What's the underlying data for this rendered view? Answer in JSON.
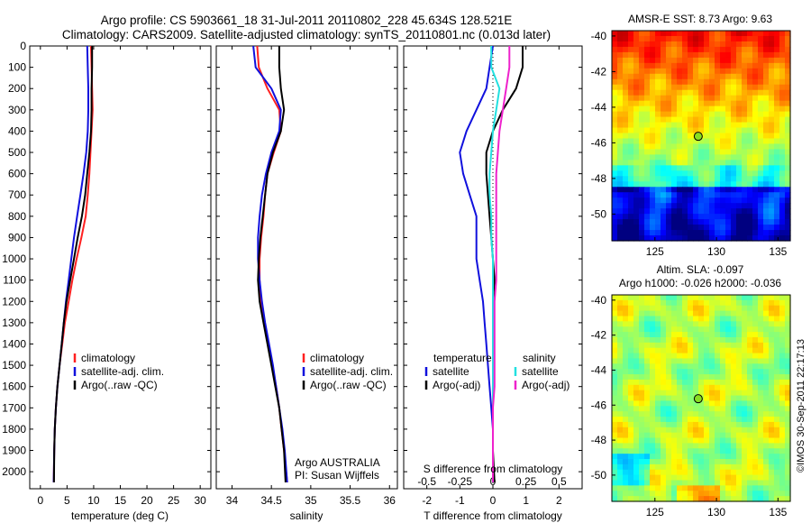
{
  "title": {
    "line1": "Argo profile: CS 5903661_18 31-Jul-2011 20110802_228 45.634S 128.521E",
    "line2": "Climatology: CARS2009. Satellite-adjusted climatology: synTS_20110801.nc (0.013d later)"
  },
  "colors": {
    "clim": "#ff2020",
    "sat": "#1010dd",
    "argo": "#000000",
    "sat_s": "#22e0e0",
    "argo_s": "#ee22cc"
  },
  "chart_data": [
    {
      "type": "line",
      "xlabel": "temperature (deg C)",
      "xlim": [
        -2,
        32
      ],
      "ylim": [
        2080,
        0
      ],
      "xticks": [
        0,
        5,
        10,
        15,
        20,
        25,
        30
      ],
      "yticks": [
        0,
        100,
        200,
        300,
        400,
        500,
        600,
        700,
        800,
        900,
        1000,
        1100,
        1200,
        1300,
        1400,
        1500,
        1600,
        1700,
        1800,
        1900,
        2000
      ],
      "legend": [
        "climatology",
        "satellite-adj. clim.",
        "Argo(..raw -QC)"
      ],
      "legend_position": "lower-center",
      "series": [
        {
          "name": "climatology",
          "x": [
            9.5,
            9.6,
            9.7,
            9.8,
            9.6,
            9.4,
            9.2,
            8.9,
            8.5,
            7.7,
            6.8,
            6.0,
            5.3,
            4.6,
            4.1,
            3.6,
            3.2,
            2.9,
            2.7,
            2.6,
            2.5
          ],
          "y": [
            0,
            100,
            200,
            300,
            400,
            500,
            600,
            700,
            800,
            900,
            1000,
            1100,
            1200,
            1300,
            1400,
            1500,
            1600,
            1700,
            1800,
            1900,
            2050
          ]
        },
        {
          "name": "satellite-adj. clim.",
          "x": [
            8.8,
            8.9,
            9.0,
            9.0,
            8.9,
            8.6,
            8.1,
            7.5,
            6.9,
            6.3,
            5.8,
            5.3,
            4.8,
            4.4,
            4.0,
            3.6,
            3.2,
            2.9,
            2.7,
            2.6,
            2.5
          ],
          "y": [
            0,
            100,
            200,
            300,
            400,
            500,
            600,
            700,
            800,
            900,
            1000,
            1100,
            1200,
            1300,
            1400,
            1500,
            1600,
            1700,
            1800,
            1900,
            2050
          ]
        },
        {
          "name": "Argo(..raw -QC)",
          "x": [
            9.7,
            9.7,
            9.6,
            9.6,
            9.5,
            9.2,
            8.8,
            8.4,
            7.8,
            7.0,
            6.3,
            5.6,
            4.9,
            4.4,
            4.0,
            3.6,
            3.2,
            2.9,
            2.7,
            2.6,
            2.55
          ],
          "y": [
            0,
            100,
            200,
            300,
            400,
            500,
            600,
            700,
            800,
            900,
            1000,
            1100,
            1200,
            1300,
            1400,
            1500,
            1600,
            1700,
            1800,
            1900,
            2050
          ]
        }
      ],
      "annotations": []
    },
    {
      "type": "line",
      "xlabel": "salinity",
      "xlim": [
        33.8,
        36.1
      ],
      "ylim": [
        2080,
        0
      ],
      "xticks": [
        34,
        34.5,
        35,
        35.5,
        36
      ],
      "legend": [
        "climatology",
        "satellite-adj. clim.",
        "Argo(..raw -QC)"
      ],
      "legend_position": "lower-right",
      "series": [
        {
          "name": "climatology",
          "x": [
            34.32,
            34.34,
            34.45,
            34.6,
            34.62,
            34.53,
            34.45,
            34.42,
            34.4,
            34.37,
            34.35,
            34.35,
            34.37,
            34.41,
            34.46,
            34.51,
            34.56,
            34.6,
            34.63,
            34.66,
            34.7
          ],
          "y": [
            0,
            100,
            200,
            300,
            400,
            500,
            600,
            700,
            800,
            900,
            1000,
            1100,
            1200,
            1300,
            1400,
            1500,
            1600,
            1700,
            1800,
            1900,
            2050
          ]
        },
        {
          "name": "satellite-adj. clim.",
          "x": [
            34.27,
            34.3,
            34.5,
            34.62,
            34.6,
            34.5,
            34.43,
            34.38,
            34.35,
            34.33,
            34.33,
            34.35,
            34.38,
            34.42,
            34.47,
            34.52,
            34.56,
            34.6,
            34.64,
            34.67,
            34.7
          ],
          "y": [
            0,
            100,
            200,
            300,
            400,
            500,
            600,
            700,
            800,
            900,
            1000,
            1100,
            1200,
            1300,
            1400,
            1500,
            1600,
            1700,
            1800,
            1900,
            2050
          ]
        },
        {
          "name": "Argo(..raw -QC)",
          "x": [
            34.6,
            34.6,
            34.62,
            34.66,
            34.62,
            34.52,
            34.45,
            34.42,
            34.39,
            34.36,
            34.34,
            34.33,
            34.35,
            34.4,
            34.45,
            34.5,
            34.55,
            34.6,
            34.63,
            34.66,
            34.68
          ],
          "y": [
            0,
            100,
            200,
            300,
            400,
            500,
            600,
            700,
            800,
            900,
            1000,
            1100,
            1200,
            1300,
            1400,
            1500,
            1600,
            1700,
            1800,
            1900,
            2050
          ]
        }
      ],
      "annotations": [
        "Argo AUSTRALIA",
        "PI: Susan Wijffels"
      ]
    },
    {
      "type": "line",
      "xlabel": "T difference from climatology",
      "top_axis_label": "S difference from climatology",
      "xlim": [
        -2.7,
        2.7
      ],
      "ylim": [
        2080,
        0
      ],
      "xticks": [
        -2,
        -1,
        0,
        1,
        2
      ],
      "top_xticks": [
        "-0.5",
        "-0.25",
        "0",
        "0.25",
        "0.5"
      ],
      "legend_groups": [
        {
          "title": "temperature",
          "items": [
            "satellite",
            "Argo(-adj)"
          ]
        },
        {
          "title": "salinity",
          "items": [
            "satellite",
            "Argo(-adj)"
          ]
        }
      ],
      "series": [
        {
          "name": "satellite",
          "group": "temperature",
          "x": [
            0.0,
            -0.1,
            -0.2,
            -0.5,
            -0.8,
            -1.0,
            -0.9,
            -0.7,
            -0.5,
            -0.5,
            -0.5,
            -0.4,
            -0.3,
            -0.25,
            -0.2,
            -0.15,
            -0.1,
            -0.05,
            0.0,
            0.0,
            0.0
          ],
          "y": [
            0,
            100,
            200,
            300,
            400,
            500,
            600,
            700,
            800,
            900,
            1000,
            1100,
            1200,
            1300,
            1400,
            1500,
            1600,
            1700,
            1800,
            1900,
            2050
          ]
        },
        {
          "name": "Argo(-adj)",
          "group": "temperature",
          "x": [
            0.9,
            0.9,
            0.7,
            0.3,
            0.0,
            -0.2,
            -0.2,
            -0.15,
            -0.1,
            -0.05,
            0.0,
            0.05,
            0.0,
            0.0,
            0.0,
            0.0,
            0.0,
            0.0,
            0.0,
            0.0,
            0.05
          ],
          "y": [
            0,
            100,
            200,
            300,
            400,
            500,
            600,
            700,
            800,
            900,
            1000,
            1100,
            1200,
            1300,
            1400,
            1500,
            1600,
            1700,
            1800,
            1900,
            2050
          ]
        },
        {
          "name": "satellite",
          "group": "salinity",
          "x": [
            -0.05,
            -0.05,
            0.2,
            0.1,
            0.0,
            -0.05,
            -0.1,
            -0.1,
            -0.05,
            -0.05,
            0.0,
            0.0,
            0.0,
            0.0,
            0.0,
            0.0,
            0.0,
            0.0,
            0.0,
            0.0,
            0.0
          ],
          "y": [
            0,
            100,
            200,
            300,
            400,
            500,
            600,
            700,
            800,
            900,
            1000,
            1100,
            1200,
            1300,
            1400,
            1500,
            1600,
            1700,
            1800,
            1900,
            2050
          ]
        },
        {
          "name": "Argo(-adj)",
          "group": "salinity",
          "x": [
            0.5,
            0.5,
            0.4,
            0.3,
            0.2,
            0.15,
            0.1,
            0.1,
            0.1,
            0.1,
            0.1,
            0.1,
            0.05,
            0.05,
            0.05,
            0.05,
            0.05,
            0.0,
            0.0,
            0.0,
            0.0
          ],
          "y": [
            0,
            100,
            200,
            300,
            400,
            500,
            600,
            700,
            800,
            900,
            1000,
            1100,
            1200,
            1300,
            1400,
            1500,
            1600,
            1700,
            1800,
            1900,
            2050
          ]
        }
      ]
    },
    {
      "type": "heatmap",
      "title": "AMSR-E SST: 8.73 Argo: 9.63",
      "xticks": [
        125,
        130,
        135
      ],
      "yticks": [
        -40,
        -42,
        -44,
        -46,
        -48,
        -50
      ],
      "xlim": [
        121.5,
        136
      ],
      "ylim": [
        -51.5,
        -39.7
      ],
      "marker": {
        "lon": 128.521,
        "lat": -45.634
      }
    },
    {
      "type": "heatmap",
      "title_line1": "Altim. SLA: -0.097",
      "title_line2": "Argo h1000: -0.026 h2000: -0.036",
      "xticks": [
        125,
        130,
        135
      ],
      "yticks": [
        -40,
        -42,
        -44,
        -46,
        -48,
        -50
      ],
      "xlim": [
        121.5,
        136
      ],
      "ylim": [
        -51.5,
        -39.7
      ],
      "marker": {
        "lon": 128.521,
        "lat": -45.634
      }
    }
  ],
  "credit": "©IMOS 30-Sep-2011 22:17:13"
}
